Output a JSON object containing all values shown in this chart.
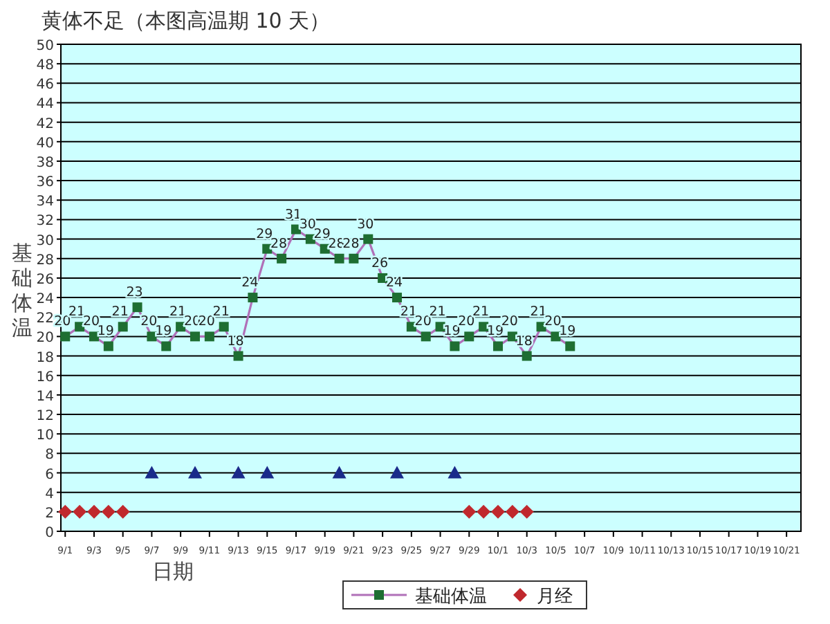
{
  "chart_data": {
    "type": "line",
    "title": "黄体不足（本图高温期 10 天）",
    "xlabel": "日期",
    "ylabel": "基础体温",
    "categories": [
      "9/1",
      null,
      "9/3",
      null,
      "9/5",
      null,
      "9/7",
      null,
      "9/9",
      null,
      "9/11",
      null,
      "9/13",
      null,
      "9/15",
      null,
      "9/17",
      null,
      "9/19",
      null,
      "9/21",
      null,
      "9/23",
      null,
      "9/25",
      null,
      "9/27",
      null,
      "9/29",
      null,
      "10/1",
      null,
      "10/3",
      null,
      "10/5",
      null,
      "10/7",
      null,
      "10/9",
      null,
      "10/11",
      null,
      "10/13",
      null,
      "10/15",
      null,
      "10/17",
      null,
      "10/19",
      null,
      "10/21"
    ],
    "series": [
      {
        "name": "基础体温",
        "marker": "square",
        "line_style": "solid",
        "color": "#1e6e32",
        "values": [
          20,
          21,
          20,
          19,
          21,
          23,
          20,
          19,
          21,
          20,
          20,
          21,
          18,
          24,
          29,
          28,
          31,
          30,
          29,
          28,
          28,
          30,
          26,
          24,
          21,
          20,
          21,
          19,
          20,
          21,
          19,
          20,
          18,
          21,
          20,
          19,
          null,
          null,
          null,
          null,
          null,
          null,
          null,
          null,
          null,
          null,
          null,
          null,
          null,
          null,
          null
        ],
        "value_labels": [
          "20",
          "21",
          "20",
          "19",
          "21",
          "23",
          "20",
          "19",
          "21",
          "20",
          "20",
          "21",
          "18",
          "24",
          "29",
          "28",
          "31",
          "30",
          "29",
          "28",
          "28",
          "30",
          "26",
          "24",
          "21",
          "20",
          "21",
          "19",
          "20",
          "21",
          "19",
          "20",
          "18",
          "21",
          "20",
          "19",
          null,
          null,
          null,
          null,
          null,
          null,
          null,
          null,
          null,
          null,
          null,
          null,
          null,
          null,
          null
        ]
      },
      {
        "name": "月经",
        "type": "scatter",
        "marker": "diamond",
        "color": "#c0282d",
        "values": [
          2,
          2,
          2,
          2,
          2,
          null,
          null,
          null,
          null,
          null,
          null,
          null,
          null,
          null,
          null,
          null,
          null,
          null,
          null,
          null,
          null,
          null,
          null,
          null,
          null,
          null,
          null,
          null,
          2,
          2,
          2,
          2,
          2,
          null,
          null,
          null,
          null,
          null,
          null,
          null,
          null,
          null,
          null,
          null,
          null,
          null,
          null,
          null,
          null,
          null,
          null
        ]
      },
      {
        "type": "scatter",
        "marker": "triangle",
        "color": "#1a2a8a",
        "values": [
          null,
          null,
          null,
          null,
          null,
          null,
          6,
          null,
          null,
          6,
          null,
          null,
          6,
          null,
          6,
          null,
          null,
          null,
          null,
          6,
          null,
          null,
          null,
          6,
          null,
          null,
          null,
          6,
          null,
          null,
          null,
          null,
          null,
          null,
          null,
          null,
          null,
          null,
          null,
          null,
          null,
          null,
          null,
          null,
          null,
          null,
          null,
          null,
          null,
          null,
          null
        ]
      }
    ],
    "ylim": [
      0,
      50
    ],
    "yticks": [
      0,
      2,
      4,
      6,
      8,
      10,
      12,
      14,
      16,
      18,
      20,
      22,
      24,
      26,
      28,
      30,
      32,
      34,
      36,
      38,
      40,
      42,
      44,
      46,
      48,
      50
    ],
    "grid": "y",
    "legend": "bottom"
  }
}
